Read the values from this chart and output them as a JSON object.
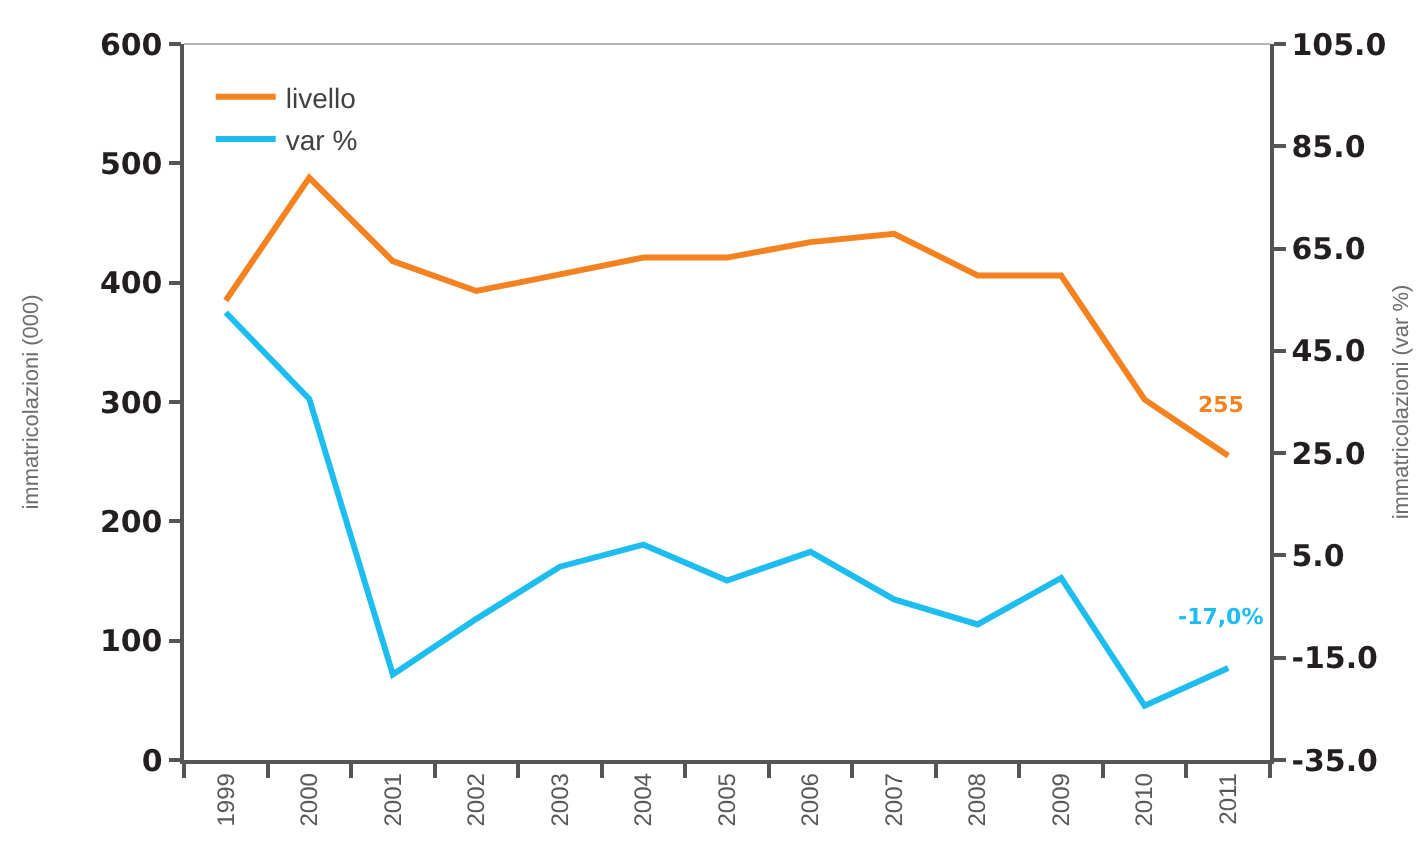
{
  "chart_data": {
    "type": "line",
    "categories": [
      "1999",
      "2000",
      "2001",
      "2002",
      "2003",
      "2004",
      "2005",
      "2006",
      "2007",
      "2008",
      "2009",
      "2010",
      "2011"
    ],
    "ylabel": "immatricolazioni (000)",
    "y2label": "immatricolazioni (var %)",
    "ylim": [
      0,
      600
    ],
    "yticks": [
      0,
      100,
      200,
      300,
      400,
      500,
      600
    ],
    "y2lim": [
      -35,
      105
    ],
    "y2ticks": [
      {
        "value": -35,
        "label": "-35.0"
      },
      {
        "value": -15,
        "label": "-15.0"
      },
      {
        "value": 5,
        "label": "5.0"
      },
      {
        "value": 25,
        "label": "25.0"
      },
      {
        "value": 45,
        "label": "45.0"
      },
      {
        "value": 65,
        "label": "65.0"
      },
      {
        "value": 85,
        "label": "85.0"
      },
      {
        "value": 105,
        "label": "105.0"
      }
    ],
    "legend": "top left",
    "series": [
      {
        "name": "livello",
        "color": "#f58220",
        "values": [
          385,
          488,
          418,
          393,
          407,
          421,
          421,
          434,
          441,
          406,
          406,
          302,
          255
        ],
        "value_labels": [
          null,
          null,
          null,
          null,
          null,
          null,
          null,
          null,
          null,
          null,
          null,
          null,
          "255"
        ]
      },
      {
        "name": "var %",
        "color": "#1ebdef",
        "axis": "y2",
        "values": [
          52.5,
          35.6,
          -18.3,
          -7.4,
          2.8,
          7.1,
          0.1,
          5.7,
          -3.6,
          -8.5,
          0.6,
          -24.4,
          -17.0
        ],
        "value_labels": [
          null,
          null,
          null,
          null,
          null,
          null,
          null,
          null,
          null,
          null,
          null,
          null,
          "-17,0%"
        ]
      }
    ]
  }
}
